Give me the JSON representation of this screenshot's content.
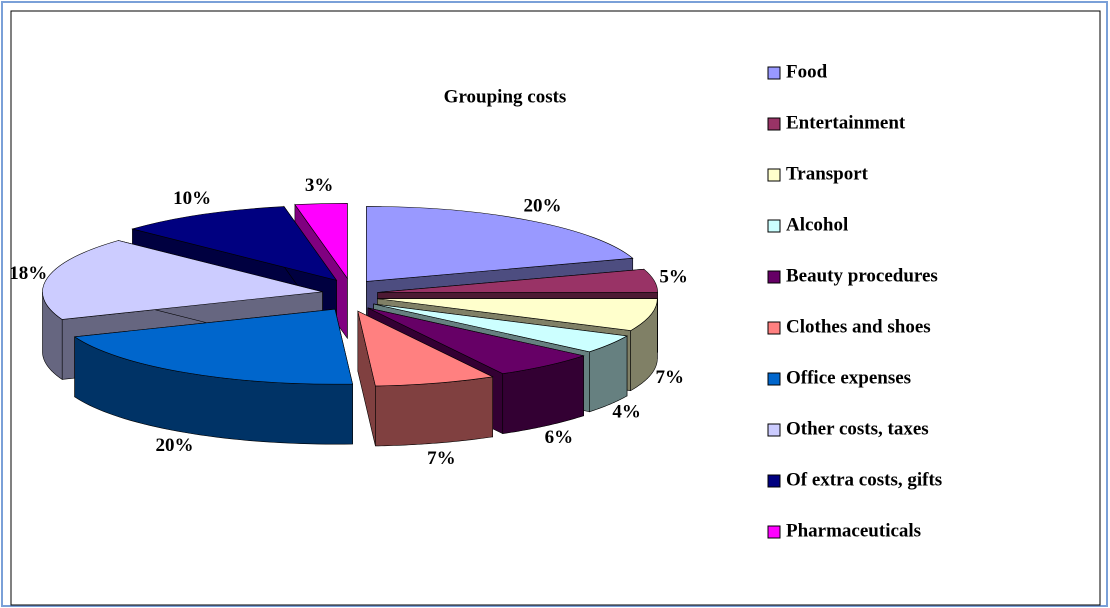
{
  "chart_data": {
    "type": "pie3d",
    "title": "Grouping costs",
    "categories": [
      "Food",
      "Entertainment",
      "Transport",
      "Alcohol",
      "Beauty procedures",
      "Clothes and shoes",
      "Office expenses",
      "Other costs, taxes",
      "Of extra costs, gifts",
      "Pharmaceuticals"
    ],
    "values": [
      20,
      5,
      7,
      4,
      6,
      7,
      20,
      18,
      10,
      3
    ],
    "value_labels": [
      "20%",
      "5%",
      "7%",
      "4%",
      "6%",
      "7%",
      "20%",
      "18%",
      "10%",
      "3%"
    ],
    "colors": [
      "#9999ff",
      "#993366",
      "#ffffcc",
      "#ccffff",
      "#660066",
      "#ff8080",
      "#0066cc",
      "#ccccff",
      "#000080",
      "#ff00ff"
    ],
    "legend": "right"
  }
}
